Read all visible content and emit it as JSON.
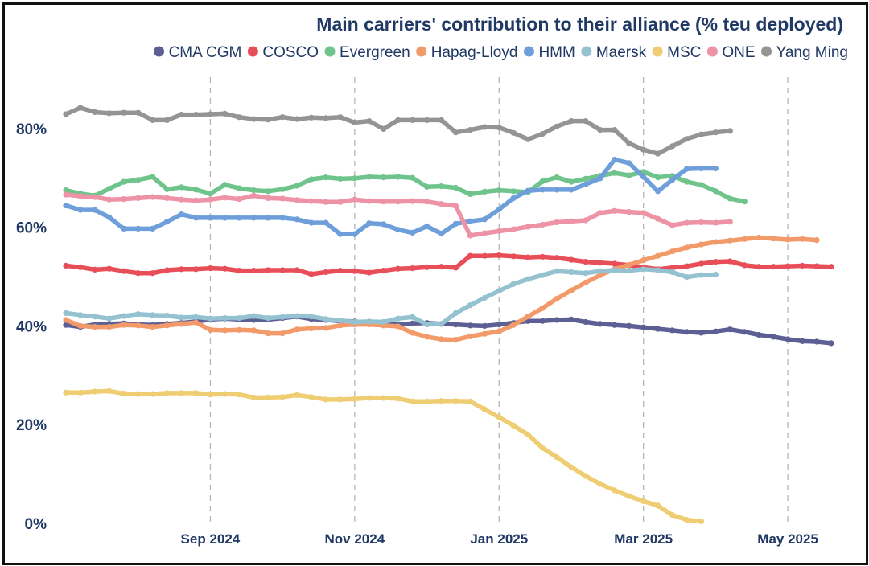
{
  "chart_data": {
    "type": "line",
    "title": "Main carriers' contribution to their alliance (% teu deployed)",
    "xlabel": "",
    "ylabel": "",
    "ylim": [
      0,
      90
    ],
    "y_ticks": [
      0,
      20,
      40,
      60,
      80
    ],
    "y_tick_labels": [
      "0%",
      "20%",
      "40%",
      "60%",
      "80%"
    ],
    "x_tick_labels": [
      "Sep 2024",
      "Nov 2024",
      "Jan 2025",
      "Mar 2025",
      "May 2025"
    ],
    "x_tick_positions": [
      10,
      20,
      30,
      40,
      50
    ],
    "x_range": [
      0,
      52
    ],
    "grid": "vertical dashed at x ticks",
    "legend": "top",
    "series": [
      {
        "name": "CMA CGM",
        "color": "#5c5f94",
        "values": [
          40.2,
          39.8,
          40.3,
          40.4,
          40.5,
          40.3,
          40.2,
          40.4,
          40.6,
          40.9,
          41.3,
          41.5,
          41.3,
          41.2,
          41.3,
          41.6,
          41.9,
          41.4,
          41.2,
          41,
          40.9,
          40.6,
          40.5,
          40.3,
          40.5,
          40.6,
          40.4,
          40.3,
          40.1,
          40,
          40.3,
          40.6,
          41,
          41,
          41.2,
          41.3,
          40.8,
          40.4,
          40.2,
          40,
          39.7,
          39.4,
          39.1,
          38.8,
          38.6,
          38.9,
          39.3,
          38.8,
          38.2,
          37.8,
          37.3,
          36.9,
          36.8,
          36.5
        ]
      },
      {
        "name": "COSCO",
        "color": "#e84e58",
        "values": [
          52.2,
          51.9,
          51.4,
          51.6,
          51.1,
          50.7,
          50.7,
          51.3,
          51.5,
          51.5,
          51.7,
          51.6,
          51.2,
          51.2,
          51.3,
          51.3,
          51.3,
          50.5,
          50.9,
          51.2,
          51.1,
          50.8,
          51.2,
          51.6,
          51.7,
          51.9,
          52,
          51.8,
          54.2,
          54.2,
          54.3,
          54.1,
          53.9,
          54,
          53.8,
          53.4,
          53,
          52.8,
          52.6,
          52.3,
          51.9,
          51.5,
          51.8,
          52.1,
          52.6,
          53,
          53.1,
          52.3,
          52,
          52,
          52.1,
          52.2,
          52.1,
          52
        ]
      },
      {
        "name": "Evergreen",
        "color": "#6fc48c",
        "values": [
          67.5,
          66.8,
          66.4,
          67.8,
          69.2,
          69.6,
          70.2,
          67.7,
          68.1,
          67.6,
          66.8,
          68.6,
          67.9,
          67.5,
          67.3,
          67.7,
          68.4,
          69.7,
          70.1,
          69.8,
          69.9,
          70.2,
          70.1,
          70.2,
          70,
          68.2,
          68.3,
          68,
          66.7,
          67.2,
          67.5,
          67.3,
          67.1,
          69.3,
          70.1,
          69.2,
          69.8,
          70.4,
          71,
          70.5,
          71.2,
          70.1,
          70.4,
          69.2,
          68.6,
          67.3,
          65.8,
          65.2
        ]
      },
      {
        "name": "Hapag-Lloyd",
        "color": "#f39a6b",
        "values": [
          41.2,
          40,
          39.8,
          39.8,
          40.2,
          40.1,
          39.8,
          40.1,
          40.4,
          40.7,
          39.2,
          39.1,
          39.2,
          39.1,
          38.5,
          38.5,
          39.3,
          39.5,
          39.6,
          40.1,
          40.3,
          40.3,
          40.1,
          39.9,
          38.6,
          37.8,
          37.3,
          37.2,
          37.9,
          38.4,
          38.9,
          40.2,
          41.9,
          43.6,
          45.5,
          47.2,
          48.8,
          50.3,
          51.5,
          52.4,
          53.3,
          54.2,
          55.1,
          55.9,
          56.5,
          57,
          57.3,
          57.6,
          57.9,
          57.7,
          57.5,
          57.6,
          57.4
        ]
      },
      {
        "name": "HMM",
        "color": "#6f9fda",
        "values": [
          64.4,
          63.5,
          63.5,
          62,
          59.7,
          59.7,
          59.7,
          61.1,
          62.6,
          61.9,
          61.9,
          61.9,
          61.9,
          61.9,
          61.9,
          61.9,
          61.6,
          60.9,
          60.9,
          58.6,
          58.6,
          60.8,
          60.6,
          59.5,
          58.9,
          60.2,
          58.7,
          60.7,
          61.2,
          61.6,
          63.6,
          65.9,
          67.4,
          67.6,
          67.6,
          67.6,
          68.7,
          69.9,
          73.7,
          73,
          70.2,
          67.3,
          69.6,
          71.8,
          71.9,
          71.9
        ]
      },
      {
        "name": "Maersk",
        "color": "#94c2d1",
        "values": [
          42.6,
          42.2,
          41.9,
          41.5,
          42,
          42.4,
          42.2,
          42.1,
          41.7,
          41.8,
          41.5,
          41.6,
          41.6,
          42,
          41.6,
          41.8,
          42,
          41.9,
          41.4,
          41.1,
          40.8,
          40.9,
          40.8,
          41.5,
          41.8,
          40.3,
          40.4,
          42.6,
          44.2,
          45.7,
          47.1,
          48.5,
          49.5,
          50.3,
          51.1,
          50.9,
          50.7,
          51.1,
          51.3,
          51.2,
          51.5,
          51.3,
          50.9,
          49.9,
          50.3,
          50.4
        ]
      },
      {
        "name": "MSC",
        "color": "#efcd72",
        "values": [
          26.5,
          26.5,
          26.7,
          26.8,
          26.3,
          26.2,
          26.2,
          26.4,
          26.4,
          26.4,
          26.1,
          26.2,
          26.1,
          25.5,
          25.5,
          25.6,
          26,
          25.6,
          25.1,
          25.1,
          25.2,
          25.4,
          25.4,
          25.3,
          24.7,
          24.7,
          24.8,
          24.8,
          24.7,
          23.1,
          21.5,
          19.8,
          18,
          15.3,
          13.4,
          11.4,
          9.6,
          8,
          6.7,
          5.5,
          4.5,
          3.6,
          1.7,
          0.7,
          0.4
        ]
      },
      {
        "name": "ONE",
        "color": "#ee93a6",
        "values": [
          66.6,
          66.3,
          66.1,
          65.6,
          65.7,
          65.9,
          66.1,
          65.9,
          65.6,
          65.4,
          65.6,
          66,
          65.7,
          66.4,
          65.9,
          65.8,
          65.5,
          65.3,
          65.1,
          65.1,
          65.6,
          65.3,
          65.2,
          65.2,
          65.3,
          65.2,
          64.7,
          64.3,
          58.3,
          58.8,
          59.2,
          59.6,
          60.1,
          60.5,
          61,
          61.2,
          61.4,
          62.9,
          63.3,
          63.1,
          62.9,
          61.7,
          60.4,
          60.9,
          61,
          60.9,
          61.1
        ]
      },
      {
        "name": "Yang Ming",
        "color": "#949494",
        "values": [
          82.9,
          84.2,
          83.3,
          83.1,
          83.2,
          83.2,
          81.7,
          81.7,
          82.8,
          82.8,
          82.9,
          83,
          82.3,
          81.9,
          81.8,
          82.3,
          81.9,
          82.2,
          82.1,
          82.3,
          81.2,
          81.5,
          79.9,
          81.7,
          81.7,
          81.7,
          81.7,
          79.2,
          79.7,
          80.3,
          80.2,
          79.1,
          77.8,
          78.9,
          80.4,
          81.5,
          81.5,
          79.7,
          79.7,
          77,
          75.7,
          74.9,
          76.4,
          77.9,
          78.8,
          79.2,
          79.5
        ]
      }
    ]
  }
}
